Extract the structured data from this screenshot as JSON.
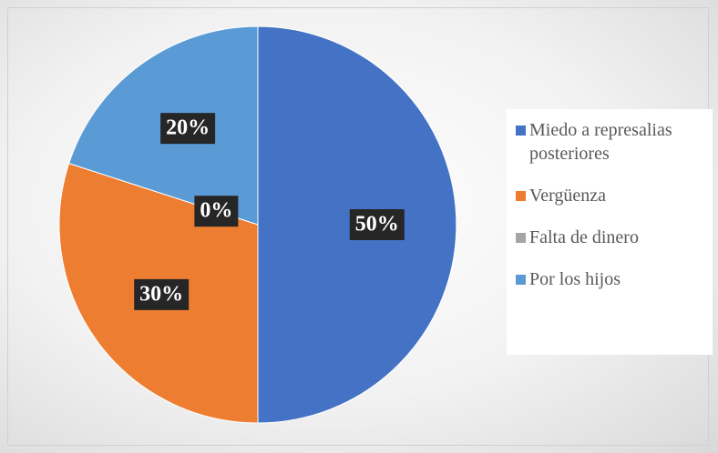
{
  "chart_data": {
    "type": "pie",
    "categories": [
      "Miedo a represalias posteriores",
      "Vergüenza",
      "Falta de dinero",
      "Por los hijos"
    ],
    "values": [
      50,
      30,
      0,
      20
    ],
    "value_labels": [
      "50%",
      "30%",
      "0%",
      "20%"
    ],
    "colors": [
      "#4472c4",
      "#ed7d31",
      "#a5a5a5",
      "#5b9bd5"
    ],
    "legend": "right"
  }
}
